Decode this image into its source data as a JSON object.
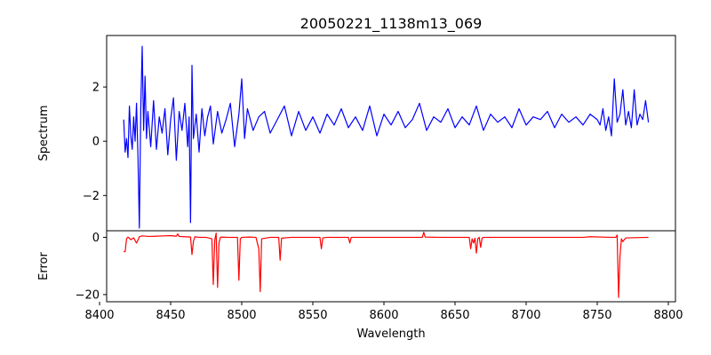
{
  "chart_data": {
    "title": "20050221_1138m13_069",
    "xlabel": "Wavelength",
    "xlim": [
      8405,
      8805
    ],
    "xticks": [
      8400,
      8450,
      8500,
      8550,
      8600,
      8650,
      8700,
      8750,
      8800
    ],
    "panels": [
      {
        "type": "line",
        "ylabel": "Spectrum",
        "ylim": [
          -3.3,
          3.9
        ],
        "yticks": [
          -2,
          0,
          2
        ],
        "ytick_labels": [
          "−2",
          "0",
          "2"
        ],
        "color": "#0000ff",
        "x": [
          8417,
          8418,
          8419,
          8420,
          8421,
          8422,
          8423,
          8424,
          8425,
          8426,
          8427,
          8428,
          8429,
          8430,
          8431,
          8432,
          8433,
          8434,
          8436,
          8438,
          8440,
          8442,
          8444,
          8446,
          8448,
          8450,
          8452,
          8454,
          8456,
          8458,
          8460,
          8462,
          8463,
          8464,
          8465,
          8466,
          8468,
          8470,
          8472,
          8474,
          8476,
          8478,
          8480,
          8483,
          8486,
          8489,
          8492,
          8495,
          8498,
          8500,
          8502,
          8504,
          8508,
          8512,
          8516,
          8520,
          8525,
          8530,
          8535,
          8540,
          8545,
          8550,
          8555,
          8560,
          8565,
          8570,
          8575,
          8580,
          8585,
          8590,
          8595,
          8600,
          8605,
          8610,
          8615,
          8620,
          8625,
          8630,
          8635,
          8640,
          8645,
          8650,
          8655,
          8660,
          8665,
          8670,
          8675,
          8680,
          8685,
          8690,
          8695,
          8700,
          8705,
          8710,
          8715,
          8720,
          8725,
          8730,
          8735,
          8740,
          8745,
          8750,
          8752,
          8754,
          8756,
          8758,
          8760,
          8762,
          8764,
          8766,
          8768,
          8770,
          8772,
          8774,
          8776,
          8778,
          8780,
          8782,
          8784,
          8786
        ],
        "y": [
          0.8,
          -0.4,
          0.1,
          -0.6,
          1.3,
          0.2,
          -0.3,
          0.9,
          0.0,
          1.4,
          -0.5,
          -3.2,
          1.2,
          3.5,
          0.4,
          2.4,
          0.1,
          1.1,
          -0.2,
          1.5,
          -0.3,
          0.9,
          0.3,
          1.2,
          -0.5,
          0.8,
          1.6,
          -0.7,
          1.1,
          0.4,
          1.4,
          -0.2,
          0.9,
          -3.0,
          2.8,
          0.1,
          1.0,
          -0.4,
          1.2,
          0.2,
          0.9,
          1.3,
          -0.1,
          1.1,
          0.3,
          0.8,
          1.4,
          -0.2,
          1.0,
          2.3,
          0.1,
          1.2,
          0.4,
          0.9,
          1.1,
          0.3,
          0.8,
          1.3,
          0.2,
          1.1,
          0.4,
          0.9,
          0.3,
          1.0,
          0.6,
          1.2,
          0.5,
          0.9,
          0.4,
          1.3,
          0.2,
          1.0,
          0.6,
          1.1,
          0.5,
          0.8,
          1.4,
          0.4,
          0.9,
          0.7,
          1.2,
          0.5,
          0.9,
          0.6,
          1.3,
          0.4,
          1.0,
          0.7,
          0.9,
          0.5,
          1.2,
          0.6,
          0.9,
          0.8,
          1.1,
          0.5,
          1.0,
          0.7,
          0.9,
          0.6,
          1.0,
          0.8,
          0.6,
          1.2,
          0.4,
          0.9,
          0.2,
          2.3,
          0.7,
          1.0,
          1.9,
          0.6,
          1.1,
          0.5,
          1.9,
          0.6,
          1.0,
          0.8,
          1.5,
          0.7
        ],
        "linewidth": 1.2
      },
      {
        "type": "line",
        "ylabel": "Error",
        "ylim": [
          -22.5,
          2.3
        ],
        "yticks": [
          0,
          -20
        ],
        "ytick_labels": [
          "0",
          "−20"
        ],
        "color": "#ff0000",
        "x": [
          8417,
          8418,
          8419,
          8420,
          8422,
          8424,
          8426,
          8427,
          8428,
          8430,
          8435,
          8440,
          8445,
          8450,
          8454,
          8455,
          8456,
          8460,
          8464,
          8465,
          8466,
          8467,
          8470,
          8475,
          8479,
          8480,
          8481,
          8482,
          8483,
          8484,
          8485,
          8486,
          8490,
          8497,
          8498,
          8499,
          8500,
          8505,
          8510,
          8512,
          8513,
          8514,
          8520,
          8526,
          8527,
          8528,
          8535,
          8540,
          8555,
          8556,
          8557,
          8560,
          8575,
          8576,
          8577,
          8600,
          8627,
          8628,
          8629,
          8640,
          8660,
          8661,
          8662,
          8663,
          8664,
          8665,
          8666,
          8667,
          8668,
          8669,
          8670,
          8680,
          8700,
          8720,
          8740,
          8745,
          8760,
          8763,
          8764,
          8765,
          8766,
          8767,
          8768,
          8770,
          8786
        ],
        "y": [
          -5.0,
          -5.0,
          -0.5,
          0.1,
          -0.8,
          -0.2,
          -2.0,
          -1.0,
          0.2,
          0.5,
          0.3,
          0.4,
          0.5,
          0.6,
          0.4,
          1.2,
          0.3,
          0.2,
          0.1,
          -6.0,
          -1.5,
          0.2,
          0.0,
          0.0,
          -0.5,
          -16.5,
          -1.0,
          1.5,
          -17.5,
          -2.0,
          0.0,
          0.1,
          0.0,
          0.0,
          -15.0,
          -0.5,
          0.0,
          0.1,
          0.0,
          -4.0,
          -19.0,
          -0.5,
          0.0,
          0.0,
          -8.0,
          -0.3,
          0.0,
          0.0,
          0.0,
          -4.0,
          -0.2,
          0.0,
          0.0,
          -2.0,
          0.0,
          0.0,
          0.0,
          1.8,
          0.1,
          0.0,
          0.0,
          -4.0,
          -0.5,
          -2.0,
          -0.3,
          -5.5,
          -0.5,
          0.0,
          -3.5,
          -0.3,
          0.0,
          0.0,
          0.0,
          0.0,
          0.0,
          0.2,
          0.0,
          0.0,
          0.8,
          -21.0,
          -6.5,
          -0.5,
          -1.5,
          -0.2,
          0.0
        ],
        "linewidth": 1.2
      }
    ]
  }
}
